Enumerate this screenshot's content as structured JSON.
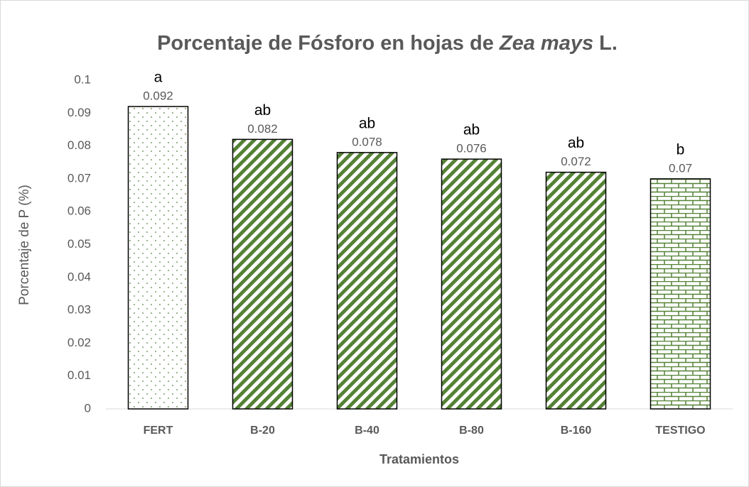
{
  "chart_data": {
    "type": "bar",
    "title": [
      "Porcentaje de Fósforo en hojas de ",
      "Zea mays",
      " L."
    ],
    "x_label": "Tratamientos",
    "y_label": "Porcentaje de P (%)",
    "categories": [
      "FERT",
      "B-20",
      "B-40",
      "B-80",
      "B-160",
      "TESTIGO"
    ],
    "values": [
      0.092,
      0.082,
      0.078,
      0.076,
      0.072,
      0.07
    ],
    "annotations": [
      "a",
      "ab",
      "ab",
      "ab",
      "ab",
      "b"
    ],
    "patterns": [
      "dots",
      "diagonal",
      "diagonal",
      "diagonal",
      "diagonal",
      "brick"
    ],
    "color": "#548235",
    "ylim": [
      0,
      0.1
    ],
    "yticks": [
      0,
      0.01,
      0.02,
      0.03,
      0.04,
      0.05,
      0.06,
      0.07,
      0.08,
      0.09,
      0.1
    ],
    "grid": false
  }
}
